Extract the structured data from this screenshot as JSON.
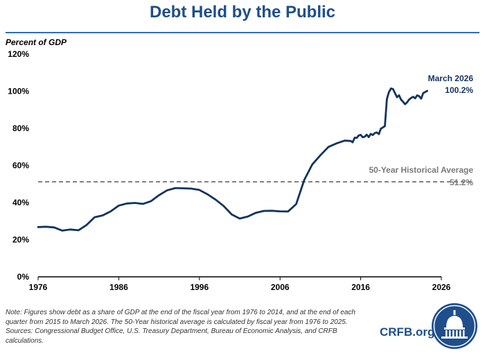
{
  "header": {
    "title": "Debt Held by the Public"
  },
  "footer": {
    "note": "Note: Figures show debt as a share of GDP at the end of the fiscal year from 1976 to 2014, and at the end of each quarter from 2015 to March 2026. The 50-Year historical average is calculated by fiscal year from 1976 to 2025.",
    "sources": "Sources: Congressional Budget Office, U.S. Treasury Department, Bureau of Economic Analysis, and CRFB calculations.",
    "brand": "CRFB.org"
  },
  "colors": {
    "title": "#1f4e8c",
    "line": "#12335e",
    "average_line": "#666666",
    "average_label": "#7a7a7a",
    "axis": "#000000"
  },
  "icons": {
    "logo": "capitol-dome-seal-icon"
  },
  "chart_data": {
    "type": "line",
    "title": "Debt Held by the Public",
    "ylabel": "Percent of GDP",
    "xlabel": "",
    "xlim": [
      1976,
      2026
    ],
    "ylim": [
      0,
      120
    ],
    "x_ticks": [
      "1976",
      "1986",
      "1996",
      "2006",
      "2016",
      "2026"
    ],
    "y_ticks": [
      "0%",
      "20%",
      "40%",
      "60%",
      "80%",
      "100%",
      "120%"
    ],
    "y_tick_values": [
      0,
      20,
      40,
      60,
      80,
      100,
      120
    ],
    "grid": false,
    "series": [
      {
        "points": [
          [
            1976,
            26.8
          ],
          [
            1977,
            27.0
          ],
          [
            1978,
            26.6
          ],
          [
            1979,
            24.9
          ],
          [
            1980,
            25.5
          ],
          [
            1981,
            25.1
          ],
          [
            1982,
            27.9
          ],
          [
            1983,
            32.1
          ],
          [
            1984,
            33.1
          ],
          [
            1985,
            35.3
          ],
          [
            1986,
            38.4
          ],
          [
            1987,
            39.5
          ],
          [
            1988,
            39.8
          ],
          [
            1989,
            39.3
          ],
          [
            1990,
            40.8
          ],
          [
            1991,
            44.0
          ],
          [
            1992,
            46.6
          ],
          [
            1993,
            47.8
          ],
          [
            1994,
            47.7
          ],
          [
            1995,
            47.5
          ],
          [
            1996,
            46.8
          ],
          [
            1997,
            44.5
          ],
          [
            1998,
            41.6
          ],
          [
            1999,
            38.2
          ],
          [
            2000,
            33.6
          ],
          [
            2001,
            31.4
          ],
          [
            2002,
            32.5
          ],
          [
            2003,
            34.5
          ],
          [
            2004,
            35.5
          ],
          [
            2005,
            35.6
          ],
          [
            2006,
            35.3
          ],
          [
            2007,
            35.2
          ],
          [
            2008,
            39.2
          ],
          [
            2009,
            52.2
          ],
          [
            2010,
            60.6
          ],
          [
            2011,
            65.5
          ],
          [
            2012,
            70.0
          ],
          [
            2013,
            71.9
          ],
          [
            2014,
            73.4
          ],
          [
            2014.75,
            73.2
          ],
          [
            2015,
            72.5
          ],
          [
            2015.25,
            75.0
          ],
          [
            2015.5,
            74.8
          ],
          [
            2015.75,
            76.2
          ],
          [
            2016,
            76.5
          ],
          [
            2016.25,
            75.2
          ],
          [
            2016.5,
            75.5
          ],
          [
            2016.75,
            76.6
          ],
          [
            2017,
            75.3
          ],
          [
            2017.25,
            77.0
          ],
          [
            2017.5,
            76.4
          ],
          [
            2017.75,
            77.5
          ],
          [
            2018,
            77.8
          ],
          [
            2018.25,
            76.9
          ],
          [
            2018.5,
            79.8
          ],
          [
            2018.75,
            80.5
          ],
          [
            2019,
            81.2
          ],
          [
            2019.25,
            95.8
          ],
          [
            2019.5,
            99.5
          ],
          [
            2019.75,
            101.5
          ],
          [
            2020,
            101.2
          ],
          [
            2020.25,
            99.0
          ],
          [
            2020.5,
            96.8
          ],
          [
            2020.75,
            97.8
          ],
          [
            2021,
            95.5
          ],
          [
            2021.25,
            94.3
          ],
          [
            2021.5,
            93.0
          ],
          [
            2021.75,
            94.0
          ],
          [
            2022,
            95.5
          ],
          [
            2022.25,
            96.4
          ],
          [
            2022.5,
            97.0
          ],
          [
            2022.75,
            96.2
          ],
          [
            2023,
            97.8
          ],
          [
            2023.25,
            97.3
          ],
          [
            2023.5,
            96.0
          ],
          [
            2023.75,
            99.0
          ],
          [
            2024,
            99.6
          ],
          [
            2024.25,
            100.2
          ]
        ]
      }
    ],
    "reference_line": {
      "label": "50-Year Historical Average",
      "value": 51.2,
      "value_label": "51.2%"
    },
    "annotation": {
      "label": "March 2026",
      "value_label": "100.2%"
    }
  }
}
